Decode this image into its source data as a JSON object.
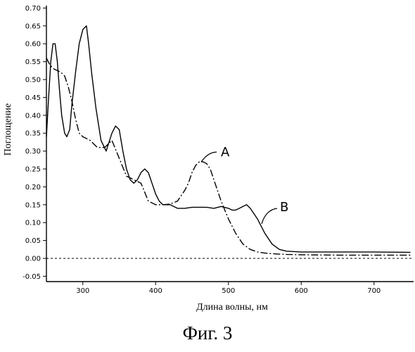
{
  "chart_data": {
    "type": "line",
    "xlabel": "Длина волны, нм",
    "ylabel": "Поглощение",
    "xlim": [
      250,
      750
    ],
    "ylim": [
      -0.06,
      0.71
    ],
    "x_ticks": [
      300,
      400,
      500,
      600,
      700
    ],
    "y_ticks": [
      "-0.05",
      "0.00",
      "0.05",
      "0.10",
      "0.15",
      "0.20",
      "0.25",
      "0.30",
      "0.35",
      "0.40",
      "0.45",
      "0.50",
      "0.55",
      "0.60",
      "0.65",
      "0.70"
    ],
    "grid": false,
    "series": [
      {
        "name": "A",
        "style": "dash-dot",
        "x": [
          250,
          255,
          260,
          265,
          270,
          275,
          280,
          285,
          290,
          295,
          300,
          305,
          310,
          320,
          330,
          340,
          350,
          360,
          370,
          380,
          390,
          400,
          410,
          420,
          430,
          440,
          445,
          450,
          455,
          460,
          465,
          470,
          475,
          480,
          490,
          500,
          510,
          520,
          530,
          540,
          550,
          560,
          570,
          580,
          600,
          650,
          700,
          750
        ],
        "y": [
          0.56,
          0.54,
          0.53,
          0.525,
          0.52,
          0.51,
          0.48,
          0.44,
          0.39,
          0.35,
          0.34,
          0.335,
          0.33,
          0.31,
          0.31,
          0.33,
          0.28,
          0.23,
          0.22,
          0.21,
          0.16,
          0.15,
          0.15,
          0.152,
          0.16,
          0.19,
          0.21,
          0.24,
          0.26,
          0.27,
          0.27,
          0.265,
          0.25,
          0.22,
          0.16,
          0.11,
          0.07,
          0.04,
          0.025,
          0.018,
          0.015,
          0.013,
          0.012,
          0.011,
          0.01,
          0.009,
          0.009,
          0.009
        ]
      },
      {
        "name": "B",
        "style": "solid",
        "x": [
          250,
          253,
          256,
          259,
          262,
          265,
          268,
          271,
          275,
          278,
          282,
          285,
          290,
          295,
          300,
          305,
          308,
          312,
          318,
          325,
          332,
          340,
          345,
          350,
          355,
          360,
          365,
          370,
          375,
          380,
          385,
          390,
          395,
          400,
          405,
          410,
          415,
          420,
          430,
          440,
          450,
          460,
          470,
          480,
          490,
          500,
          505,
          510,
          515,
          520,
          525,
          530,
          540,
          550,
          560,
          570,
          580,
          600,
          650,
          700,
          750
        ],
        "y": [
          0.34,
          0.45,
          0.55,
          0.6,
          0.6,
          0.55,
          0.47,
          0.4,
          0.35,
          0.34,
          0.36,
          0.43,
          0.52,
          0.6,
          0.64,
          0.65,
          0.6,
          0.52,
          0.42,
          0.33,
          0.3,
          0.35,
          0.37,
          0.36,
          0.3,
          0.25,
          0.22,
          0.21,
          0.22,
          0.24,
          0.25,
          0.24,
          0.21,
          0.18,
          0.16,
          0.15,
          0.15,
          0.15,
          0.14,
          0.14,
          0.143,
          0.143,
          0.143,
          0.14,
          0.145,
          0.14,
          0.135,
          0.135,
          0.14,
          0.145,
          0.15,
          0.14,
          0.11,
          0.07,
          0.04,
          0.025,
          0.02,
          0.018,
          0.018,
          0.018,
          0.017
        ]
      }
    ],
    "annotations": [
      "A",
      "B"
    ]
  },
  "caption": "Фиг. 3"
}
